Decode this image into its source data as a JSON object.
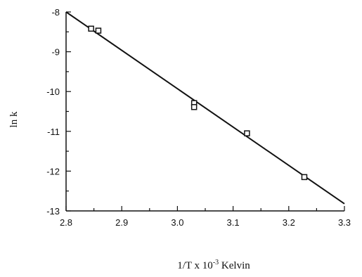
{
  "chart_data": {
    "type": "scatter",
    "title": "",
    "xlabel": "1/T x 10-3 Kelvin",
    "xlabel_parts": {
      "base": "1/T x 10",
      "sup": "-3",
      "rest": " Kelvin"
    },
    "ylabel": "ln k",
    "xlim": [
      2.8,
      3.3
    ],
    "ylim": [
      -13,
      -8
    ],
    "x_ticks": [
      "2.8",
      "2.9",
      "3.0",
      "3.1",
      "3.2",
      "3.3"
    ],
    "y_ticks": [
      "-8",
      "-9",
      "-10",
      "-11",
      "-12",
      "-13"
    ],
    "grid": false,
    "legend": "none",
    "series": [
      {
        "x": [
          2.845,
          2.858,
          3.03,
          3.03,
          3.125,
          3.228
        ],
        "y": [
          -8.42,
          -8.47,
          -10.29,
          -10.39,
          -11.05,
          -12.15
        ]
      }
    ],
    "fit_line": {
      "x": [
        2.8,
        3.3
      ],
      "y": [
        -8.0,
        -12.82
      ]
    }
  }
}
